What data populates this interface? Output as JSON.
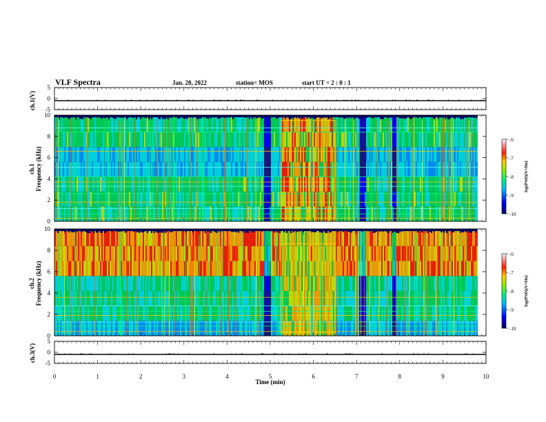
{
  "header": {
    "title": "VLF Spectra",
    "date": "Jan. 20, 2022",
    "station": "station= MOS",
    "start": "start  UT  =   2 : 0  : 1"
  },
  "colors": {
    "scale": [
      "#1a1a80",
      "#0000ff",
      "#0099ff",
      "#00e6e6",
      "#00dd55",
      "#ccee00",
      "#ffaa00",
      "#ff2200",
      "#ff9999",
      "#ffeeee"
    ],
    "background": "#000066"
  },
  "chart_data": [
    {
      "type": "line",
      "ylabel": "ch.1(V)",
      "ylim": [
        -5,
        5
      ],
      "yticks": [
        "5",
        "0",
        "-5"
      ],
      "series": [
        {
          "values": [
            0,
            0,
            0,
            0,
            0,
            0,
            0,
            0,
            0,
            0,
            0
          ]
        }
      ],
      "x": [
        0,
        1,
        2,
        3,
        4,
        5,
        6,
        7,
        8,
        9,
        10
      ]
    },
    {
      "type": "heatmap",
      "channel": "ch.1",
      "ylabel": "Frequency (kHz)",
      "ylim": [
        0,
        10
      ],
      "yticks": [
        "0",
        "2",
        "4",
        "6",
        "8",
        "10"
      ],
      "xlim": [
        0,
        10
      ],
      "colorbar": {
        "label": "log(PSD)(V²/Hz)",
        "range": [
          -10,
          -6
        ],
        "ticks": [
          "-6",
          "-7",
          "-8",
          "-9",
          "-10"
        ]
      },
      "bursts": [
        [
          5.25,
          5.92
        ],
        [
          6.0,
          6.5
        ]
      ]
    },
    {
      "type": "heatmap",
      "channel": "ch.2",
      "ylabel": "Frequency (kHz)",
      "ylim": [
        0,
        10
      ],
      "yticks": [
        "0",
        "2",
        "4",
        "6",
        "8",
        "10"
      ],
      "xlim": [
        0,
        10
      ],
      "colorbar": {
        "label": "log(PSD)(V²/Hz)",
        "range": [
          -10,
          -6
        ],
        "ticks": [
          "-6",
          "-7",
          "-8",
          "-9",
          "-10"
        ]
      },
      "bursts": [
        [
          5.25,
          5.92
        ],
        [
          6.0,
          6.5
        ]
      ]
    },
    {
      "type": "line",
      "ylabel": "ch.3(V)",
      "ylim": [
        -5,
        5
      ],
      "yticks": [
        "5",
        "0",
        "-5"
      ],
      "series": [
        {
          "values": [
            0,
            0,
            0,
            0,
            0,
            0,
            0,
            0,
            0,
            0,
            0
          ]
        }
      ],
      "x": [
        0,
        1,
        2,
        3,
        4,
        5,
        6,
        7,
        8,
        9,
        10
      ],
      "xlabel": "Time (min)",
      "xticks": [
        "0",
        "1",
        "2",
        "3",
        "4",
        "5",
        "6",
        "7",
        "8",
        "9",
        "10"
      ],
      "xlim": [
        0,
        10
      ]
    }
  ]
}
